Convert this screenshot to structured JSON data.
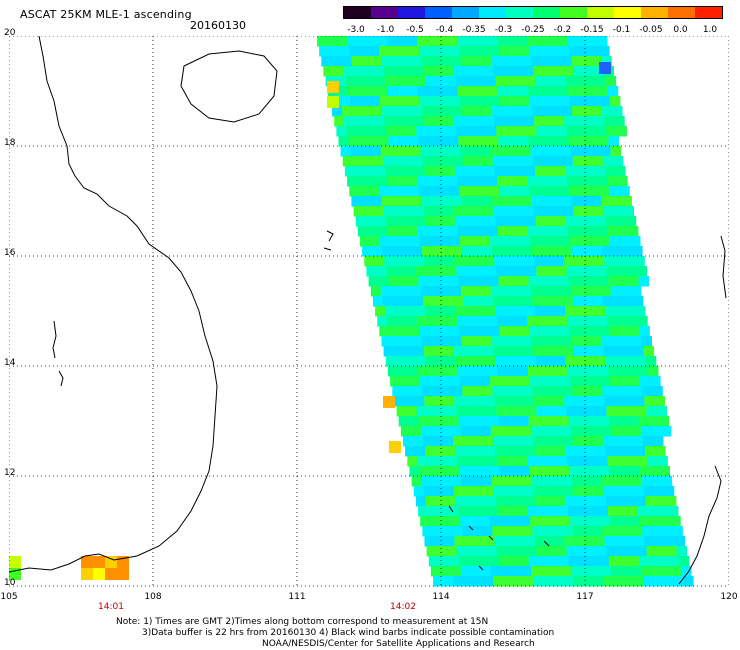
{
  "header": {
    "title": "ASCAT 25KM MLE-1 ascending",
    "date": "20160130"
  },
  "colorbar": {
    "labels": [
      "-3.0",
      "-1.0",
      "-0.5",
      "-0.4",
      "-0.35",
      "-0.3",
      "-0.25",
      "-0.2",
      "-0.15",
      "-0.1",
      "-0.05",
      "0.0",
      "1.0"
    ],
    "colors": [
      "#200020",
      "#5a0090",
      "#2018e0",
      "#0060ff",
      "#00a8ff",
      "#00e8ff",
      "#00ffc0",
      "#00ff70",
      "#40ff20",
      "#c0ff00",
      "#ffff00",
      "#ffb000",
      "#ff7000",
      "#ff2000"
    ]
  },
  "map": {
    "lat_labels": [
      "20",
      "18",
      "16",
      "14",
      "12",
      "10"
    ],
    "lon_labels": [
      "105",
      "108",
      "111",
      "114",
      "117",
      "120"
    ],
    "pass_times": [
      "14:01",
      "14:02"
    ]
  },
  "footer": {
    "line1": "Note: 1) Times are GMT 2)Times along bottom correspond to measurement at 15N",
    "line2": "3)Data buffer is 22 hrs from 20160130 4) Black wind barbs indicate possible contamination",
    "line3": "NOAA/NESDIS/Center for Satellite Applications and Research"
  }
}
